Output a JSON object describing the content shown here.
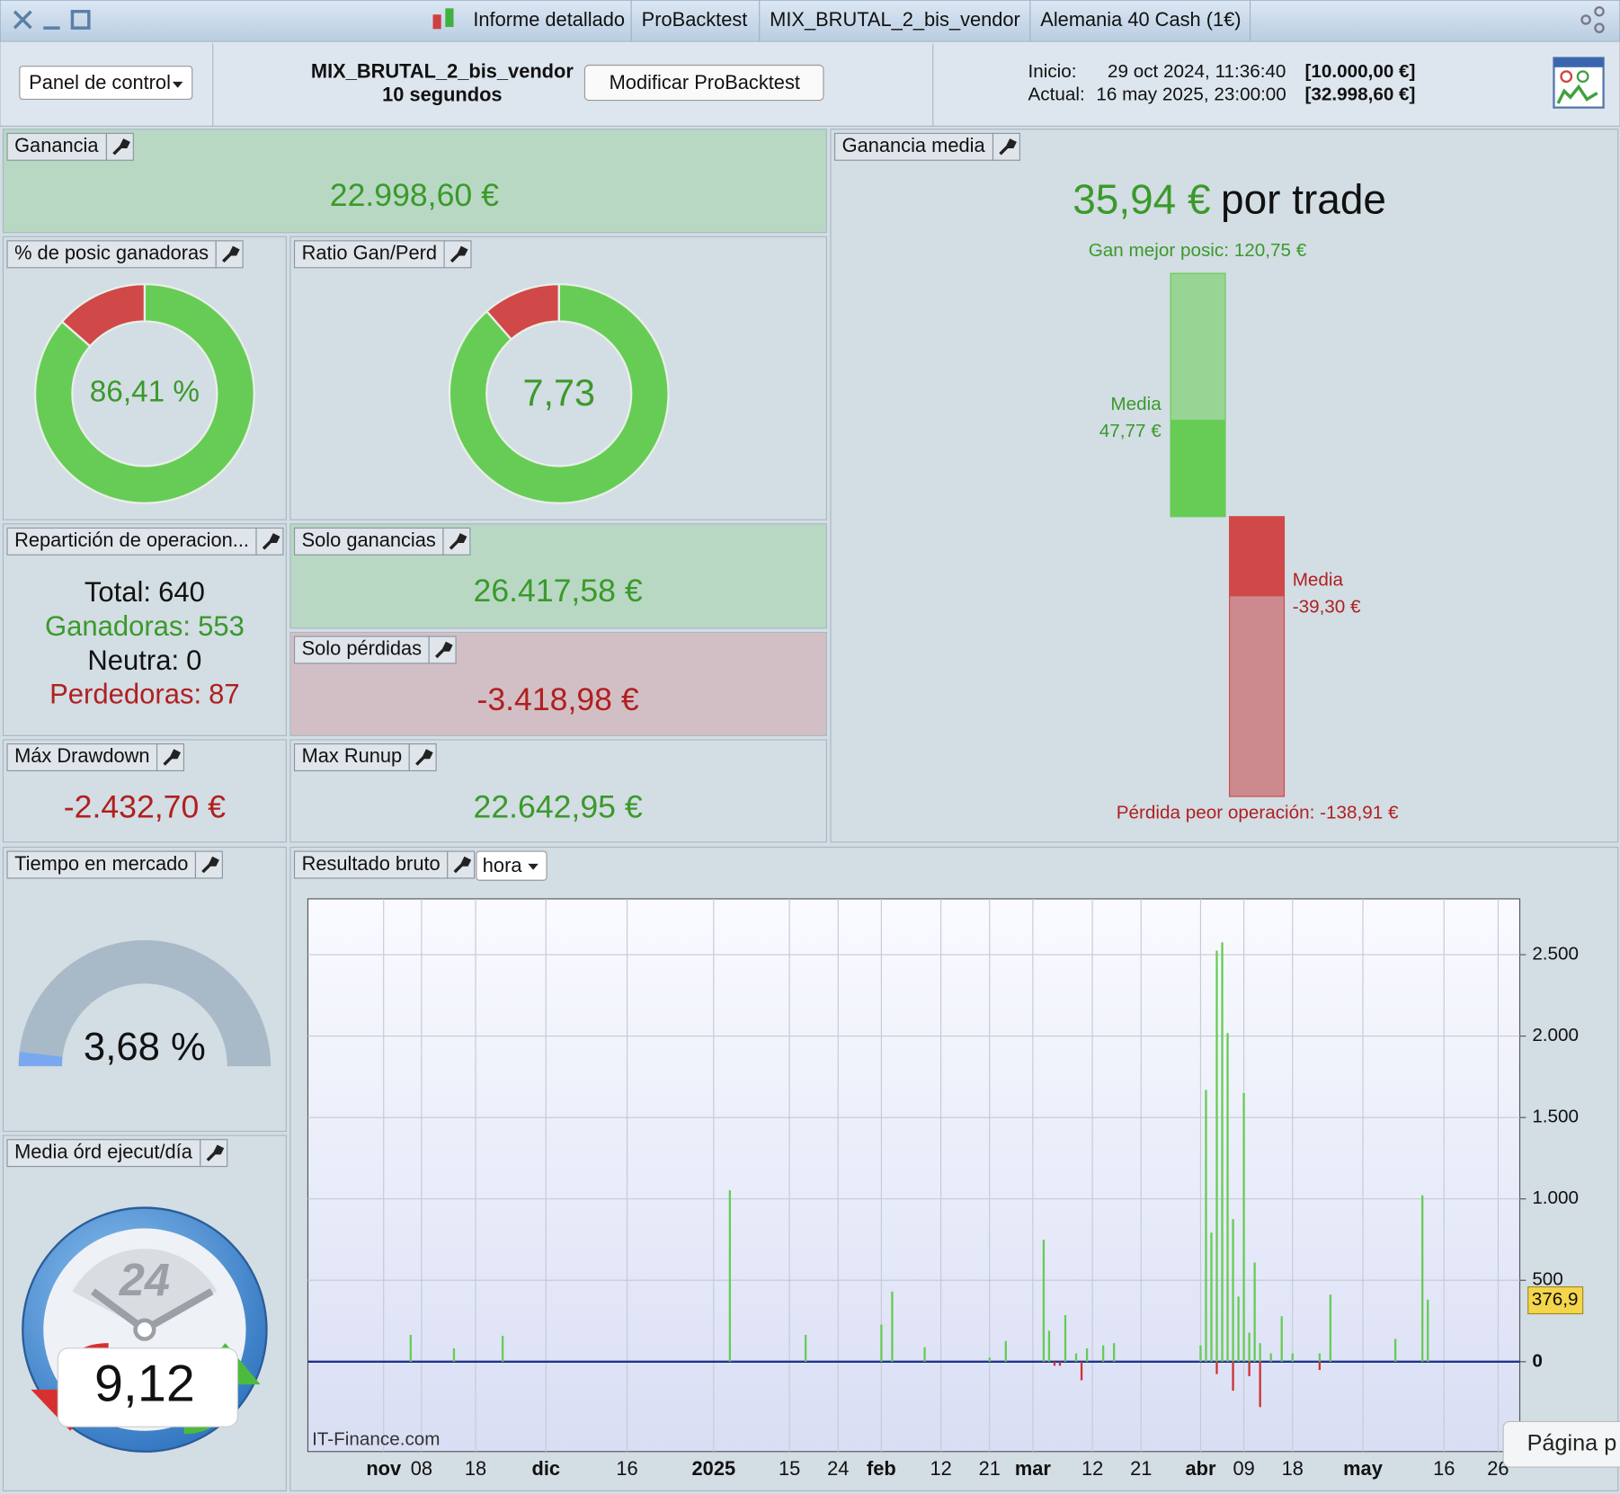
{
  "titlebar": {
    "tabs": [
      "Informe detallado",
      "ProBacktest",
      "MIX_BRUTAL_2_bis_vendor",
      "Alemania 40 Cash (1€)"
    ]
  },
  "header": {
    "panel_button": "Panel de control",
    "strategy": "MIX_BRUTAL_2_bis_vendor",
    "timeframe": "10 segundos",
    "modify_button": "Modificar ProBacktest",
    "start_label": "Inicio:",
    "start_date": "29 oct 2024, 11:36:40",
    "start_capital": "[10.000,00 €]",
    "current_label": "Actual:",
    "current_date": "16 may 2025, 23:00:00",
    "current_capital": "[32.998,60 €]"
  },
  "widgets": {
    "profit": {
      "title": "Ganancia",
      "value": "22.998,60 €"
    },
    "win_rate": {
      "title": "% de posic ganadoras",
      "value": 86.41,
      "label": "86,41 %"
    },
    "ratio": {
      "title": "Ratio Gan/Perd",
      "value": 7.73,
      "label": "7,73"
    },
    "breakdown": {
      "title": "Repartición de operacion...",
      "items": [
        {
          "label": "Total:",
          "value": 640,
          "color": "#111111"
        },
        {
          "label": "Ganadoras:",
          "value": 553,
          "color": "#3a9a2a"
        },
        {
          "label": "Neutra:",
          "value": 0,
          "color": "#111111"
        },
        {
          "label": "Perdedoras:",
          "value": 87,
          "color": "#b02020"
        }
      ]
    },
    "gains_only": {
      "title": "Solo ganancias",
      "value": "26.417,58 €"
    },
    "losses_only": {
      "title": "Solo pérdidas",
      "value": "-3.418,98 €"
    },
    "max_drawdown": {
      "title": "Máx Drawdown",
      "value": "-2.432,70 €"
    },
    "max_runup": {
      "title": "Max Runup",
      "value": "22.642,95 €"
    },
    "avg_gain": {
      "title": "Ganancia media",
      "value": "35,94 €",
      "suffix": "por trade",
      "best": {
        "label": "Gan mejor posic:",
        "value": 120.75,
        "value_label": "120,75 €"
      },
      "avg_win": {
        "label": "Media",
        "value": 47.77,
        "value_label": "47,77 €"
      },
      "avg_loss": {
        "label": "Media",
        "value": -39.3,
        "value_label": "-39,30 €"
      },
      "worst": {
        "label": "Pérdida peor operación:",
        "value": -138.91,
        "value_label": "-138,91 €"
      }
    },
    "time_in_market": {
      "title": "Tiempo en mercado",
      "value": 3.68,
      "label": "3,68 %"
    },
    "orders_per_day": {
      "title": "Media órd ejecut/día",
      "value": "9,12",
      "dial": "24"
    }
  },
  "chart_data": {
    "type": "bar",
    "title": "Resultado bruto",
    "period": "hora",
    "watermark": "IT-Finance.com",
    "positive_color": "#66cc55",
    "negative_color": "#cc3333",
    "grid": true,
    "x": [
      "2024-11-06",
      "2024-11-14",
      "2024-11-23",
      "2025-01-04",
      "2025-01-18",
      "2025-02-01",
      "2025-02-03",
      "2025-02-09",
      "2025-02-21",
      "2025-02-24",
      "2025-03-03",
      "2025-03-04",
      "2025-03-07",
      "2025-03-09",
      "2025-03-11",
      "2025-03-14",
      "2025-03-16",
      "2025-04-01",
      "2025-04-02",
      "2025-04-03",
      "2025-04-04",
      "2025-04-05",
      "2025-04-06",
      "2025-04-07",
      "2025-04-08",
      "2025-04-09",
      "2025-04-10",
      "2025-04-11",
      "2025-04-12",
      "2025-04-14",
      "2025-04-16",
      "2025-04-18",
      "2025-04-23",
      "2025-04-25",
      "2025-05-07",
      "2025-05-12",
      "2025-05-13",
      "2025-03-05",
      "2025-03-06",
      "2025-03-10",
      "2025-04-04",
      "2025-04-07",
      "2025-04-10",
      "2025-04-12",
      "2025-04-23"
    ],
    "values": [
      165,
      82,
      159,
      1053,
      165,
      228,
      431,
      89,
      25,
      127,
      749,
      190,
      286,
      51,
      82,
      100,
      114,
      100,
      1669,
      793,
      2525,
      2576,
      2018,
      876,
      400,
      1650,
      178,
      609,
      114,
      51,
      279,
      51,
      51,
      412,
      140,
      1022,
      381,
      -25,
      -25,
      -114,
      -76,
      -178,
      -89,
      -279,
      -51
    ],
    "xlim": [
      "2024-10-18",
      "2025-05-30"
    ],
    "xticks": [
      {
        "value": "2024-11-01",
        "label": "nov"
      },
      {
        "value": "2024-11-08",
        "label": "08"
      },
      {
        "value": "2024-11-18",
        "label": "18"
      },
      {
        "value": "2024-12-01",
        "label": "dic"
      },
      {
        "value": "2024-12-16",
        "label": "16"
      },
      {
        "value": "2025-01-01",
        "label": "2025"
      },
      {
        "value": "2025-01-15",
        "label": "15"
      },
      {
        "value": "2025-01-24",
        "label": "24"
      },
      {
        "value": "2025-02-01",
        "label": "feb"
      },
      {
        "value": "2025-02-12",
        "label": "12"
      },
      {
        "value": "2025-02-21",
        "label": "21"
      },
      {
        "value": "2025-03-01",
        "label": "mar"
      },
      {
        "value": "2025-03-12",
        "label": "12"
      },
      {
        "value": "2025-03-21",
        "label": "21"
      },
      {
        "value": "2025-04-01",
        "label": "abr"
      },
      {
        "value": "2025-04-09",
        "label": "09"
      },
      {
        "value": "2025-04-18",
        "label": "18"
      },
      {
        "value": "2025-05-01",
        "label": "may"
      },
      {
        "value": "2025-05-16",
        "label": "16"
      },
      {
        "value": "2025-05-26",
        "label": "26"
      }
    ],
    "ylim": [
      -552,
      2843
    ],
    "yticks": [
      0,
      500,
      {
        "value": 1000,
        "label": "1.000"
      },
      {
        "value": 1500,
        "label": "1.500"
      },
      {
        "value": 2000,
        "label": "2.000"
      },
      {
        "value": 2500,
        "label": "2.500"
      }
    ],
    "last_value": {
      "value": 376.9,
      "label": "376,9"
    }
  },
  "tooltip": "Página p"
}
